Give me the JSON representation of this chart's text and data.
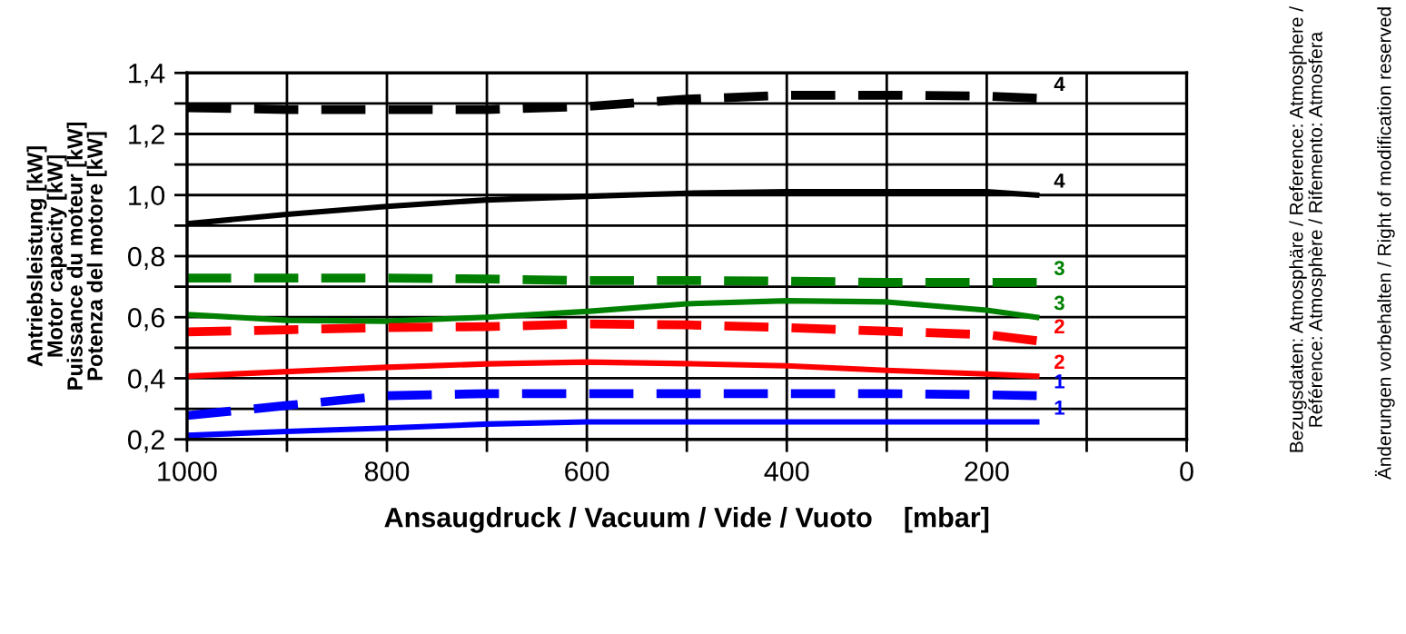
{
  "chart_data": {
    "type": "line",
    "xlabel": "Ansaugdruck / Vacuum / Vide / Vuoto    [mbar]",
    "ylabel": "Antriebsleistung [kW]\nMotor capacity [kW]\nPuissance du moteur [kW]\nPotenza del motore [kW]",
    "x": [
      1000,
      900,
      800,
      700,
      600,
      500,
      400,
      300,
      200,
      150
    ],
    "series": [
      {
        "name": "4",
        "color": "#000000",
        "line_style": "dashed",
        "values": [
          1.286,
          1.28,
          1.28,
          1.28,
          1.29,
          1.314,
          1.327,
          1.327,
          1.324,
          1.317
        ]
      },
      {
        "name": "4",
        "color": "#000000",
        "line_style": "solid",
        "values": [
          0.906,
          0.937,
          0.963,
          0.984,
          0.996,
          1.006,
          1.011,
          1.011,
          1.011,
          1.0
        ]
      },
      {
        "name": "3",
        "color": "#008000",
        "line_style": "dashed",
        "values": [
          0.728,
          0.728,
          0.728,
          0.725,
          0.72,
          0.72,
          0.718,
          0.714,
          0.714,
          0.714
        ]
      },
      {
        "name": "3",
        "color": "#008000",
        "line_style": "solid",
        "values": [
          0.609,
          0.59,
          0.587,
          0.6,
          0.619,
          0.644,
          0.654,
          0.65,
          0.623,
          0.6
        ]
      },
      {
        "name": "2",
        "color": "#ff0000",
        "line_style": "dashed",
        "values": [
          0.552,
          0.559,
          0.566,
          0.569,
          0.578,
          0.575,
          0.566,
          0.554,
          0.543,
          0.523
        ]
      },
      {
        "name": "2",
        "color": "#ff0000",
        "line_style": "solid",
        "values": [
          0.407,
          0.422,
          0.436,
          0.447,
          0.453,
          0.448,
          0.441,
          0.426,
          0.414,
          0.407
        ]
      },
      {
        "name": "1",
        "color": "#0000ff",
        "line_style": "dashed",
        "values": [
          0.278,
          0.311,
          0.343,
          0.35,
          0.35,
          0.35,
          0.35,
          0.35,
          0.346,
          0.343
        ]
      },
      {
        "name": "1",
        "color": "#0000ff",
        "line_style": "solid",
        "values": [
          0.213,
          0.226,
          0.237,
          0.25,
          0.257,
          0.257,
          0.257,
          0.257,
          0.257,
          0.257
        ]
      }
    ],
    "annotations": [
      "Bezugsdaten: Atmosphäre / Reference: Atmosphere /\nRéférence: Atmosphère / Rifemento: Atmosfera",
      "Änderungen vorbehalten / Right of modification reserved"
    ],
    "xlim": [
      1000,
      0
    ],
    "xticks": [
      1000,
      {
        "value": 900,
        "label": null
      },
      800,
      {
        "value": 700,
        "label": null
      },
      600,
      {
        "value": 500,
        "label": null
      },
      400,
      {
        "value": 300,
        "label": null
      },
      200,
      {
        "value": 100,
        "label": null
      },
      0
    ],
    "ylim": [
      0.2,
      1.4
    ],
    "yticks": [
      {
        "value": 0.2,
        "label": "0,2"
      },
      {
        "value": 0.3,
        "label": null
      },
      {
        "value": 0.4,
        "label": "0,4"
      },
      {
        "value": 0.5,
        "label": null
      },
      {
        "value": 0.6,
        "label": "0,6"
      },
      {
        "value": 0.7,
        "label": null
      },
      {
        "value": 0.8,
        "label": "0,8"
      },
      {
        "value": 0.9,
        "label": null
      },
      {
        "value": 1.0,
        "label": "1,0"
      },
      {
        "value": 1.1,
        "label": null
      },
      {
        "value": 1.2,
        "label": "1,2"
      },
      {
        "value": 1.3,
        "label": null
      },
      {
        "value": 1.4,
        "label": "1,4"
      }
    ],
    "grid": true,
    "legend": false
  }
}
